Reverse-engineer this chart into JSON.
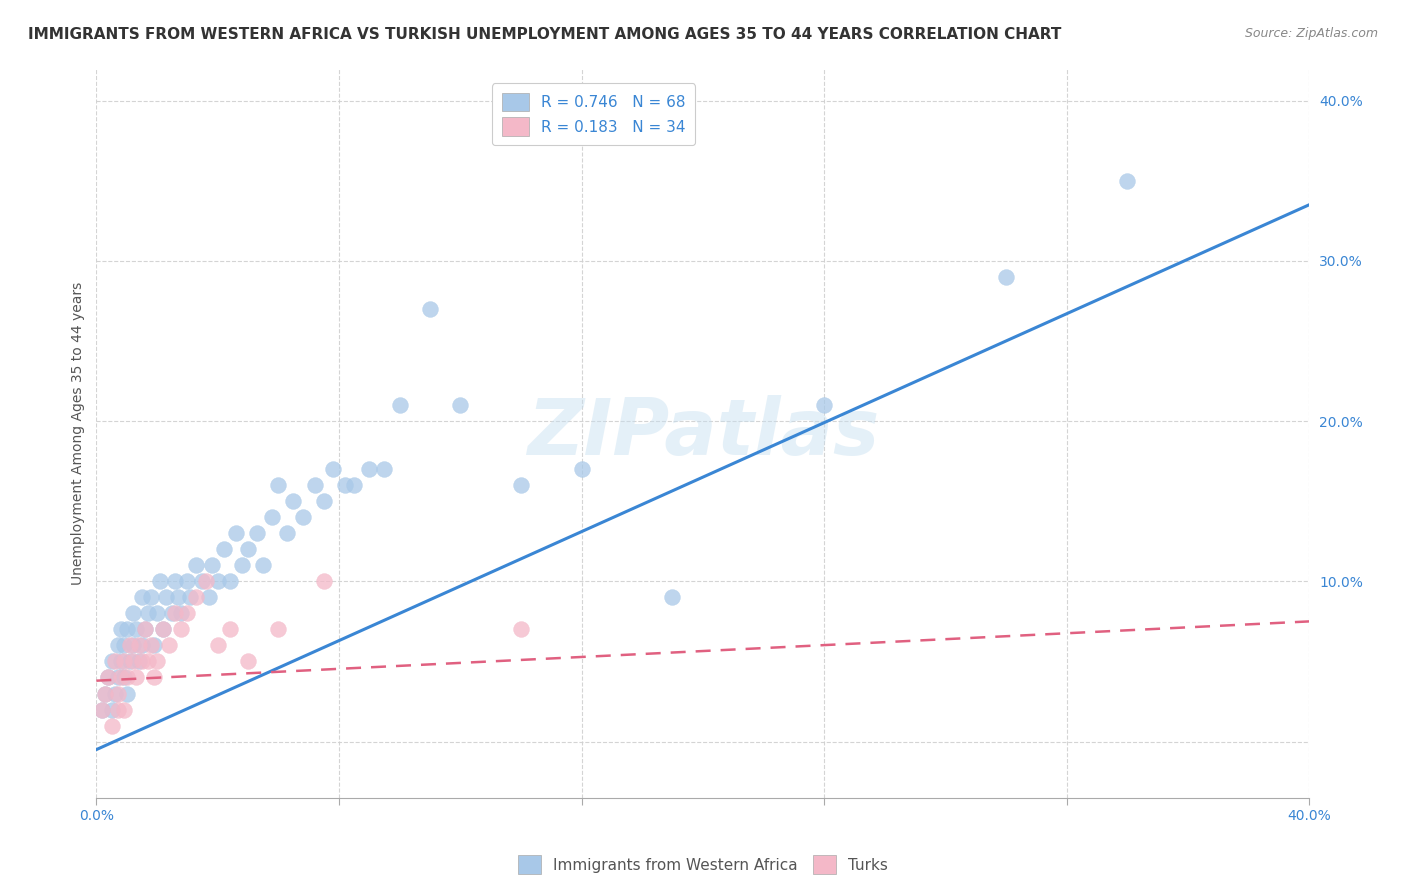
{
  "title": "IMMIGRANTS FROM WESTERN AFRICA VS TURKISH UNEMPLOYMENT AMONG AGES 35 TO 44 YEARS CORRELATION CHART",
  "source": "Source: ZipAtlas.com",
  "ylabel": "Unemployment Among Ages 35 to 44 years",
  "xlim": [
    0.0,
    0.4
  ],
  "ylim": [
    -0.035,
    0.42
  ],
  "watermark": "ZIPatlas",
  "legend_label1": "Immigrants from Western Africa",
  "legend_label2": "Turks",
  "color_blue": "#a8c8e8",
  "color_pink": "#f4b8c8",
  "line_color_blue": "#3a86d4",
  "line_color_pink": "#e06080",
  "blue_line_x": [
    0.0,
    0.4
  ],
  "blue_line_y": [
    -0.005,
    0.335
  ],
  "pink_line_x": [
    0.0,
    0.4
  ],
  "pink_line_y": [
    0.038,
    0.075
  ],
  "grid_color": "#d0d0d0",
  "background_color": "#ffffff",
  "title_fontsize": 11,
  "axis_label_fontsize": 10,
  "tick_fontsize": 10,
  "legend_fontsize": 11,
  "blue_x": [
    0.002,
    0.003,
    0.004,
    0.005,
    0.005,
    0.006,
    0.007,
    0.007,
    0.008,
    0.008,
    0.009,
    0.009,
    0.01,
    0.01,
    0.011,
    0.012,
    0.012,
    0.013,
    0.014,
    0.015,
    0.015,
    0.016,
    0.017,
    0.018,
    0.019,
    0.02,
    0.021,
    0.022,
    0.023,
    0.025,
    0.026,
    0.027,
    0.028,
    0.03,
    0.031,
    0.033,
    0.035,
    0.037,
    0.038,
    0.04,
    0.042,
    0.044,
    0.046,
    0.048,
    0.05,
    0.053,
    0.055,
    0.058,
    0.06,
    0.063,
    0.065,
    0.068,
    0.072,
    0.075,
    0.078,
    0.082,
    0.085,
    0.09,
    0.095,
    0.1,
    0.11,
    0.12,
    0.14,
    0.16,
    0.19,
    0.24,
    0.3,
    0.34
  ],
  "blue_y": [
    0.02,
    0.03,
    0.04,
    0.02,
    0.05,
    0.03,
    0.04,
    0.06,
    0.05,
    0.07,
    0.04,
    0.06,
    0.03,
    0.07,
    0.05,
    0.06,
    0.08,
    0.07,
    0.05,
    0.06,
    0.09,
    0.07,
    0.08,
    0.09,
    0.06,
    0.08,
    0.1,
    0.07,
    0.09,
    0.08,
    0.1,
    0.09,
    0.08,
    0.1,
    0.09,
    0.11,
    0.1,
    0.09,
    0.11,
    0.1,
    0.12,
    0.1,
    0.13,
    0.11,
    0.12,
    0.13,
    0.11,
    0.14,
    0.16,
    0.13,
    0.15,
    0.14,
    0.16,
    0.15,
    0.17,
    0.16,
    0.16,
    0.17,
    0.17,
    0.21,
    0.27,
    0.21,
    0.16,
    0.17,
    0.09,
    0.21,
    0.29,
    0.35
  ],
  "pink_x": [
    0.002,
    0.003,
    0.004,
    0.005,
    0.006,
    0.007,
    0.007,
    0.008,
    0.009,
    0.009,
    0.01,
    0.011,
    0.012,
    0.013,
    0.014,
    0.015,
    0.016,
    0.017,
    0.018,
    0.019,
    0.02,
    0.022,
    0.024,
    0.026,
    0.028,
    0.03,
    0.033,
    0.036,
    0.04,
    0.044,
    0.05,
    0.06,
    0.075,
    0.14
  ],
  "pink_y": [
    0.02,
    0.03,
    0.04,
    0.01,
    0.05,
    0.03,
    0.02,
    0.04,
    0.05,
    0.02,
    0.04,
    0.06,
    0.05,
    0.04,
    0.06,
    0.05,
    0.07,
    0.05,
    0.06,
    0.04,
    0.05,
    0.07,
    0.06,
    0.08,
    0.07,
    0.08,
    0.09,
    0.1,
    0.06,
    0.07,
    0.05,
    0.07,
    0.1,
    0.07
  ]
}
